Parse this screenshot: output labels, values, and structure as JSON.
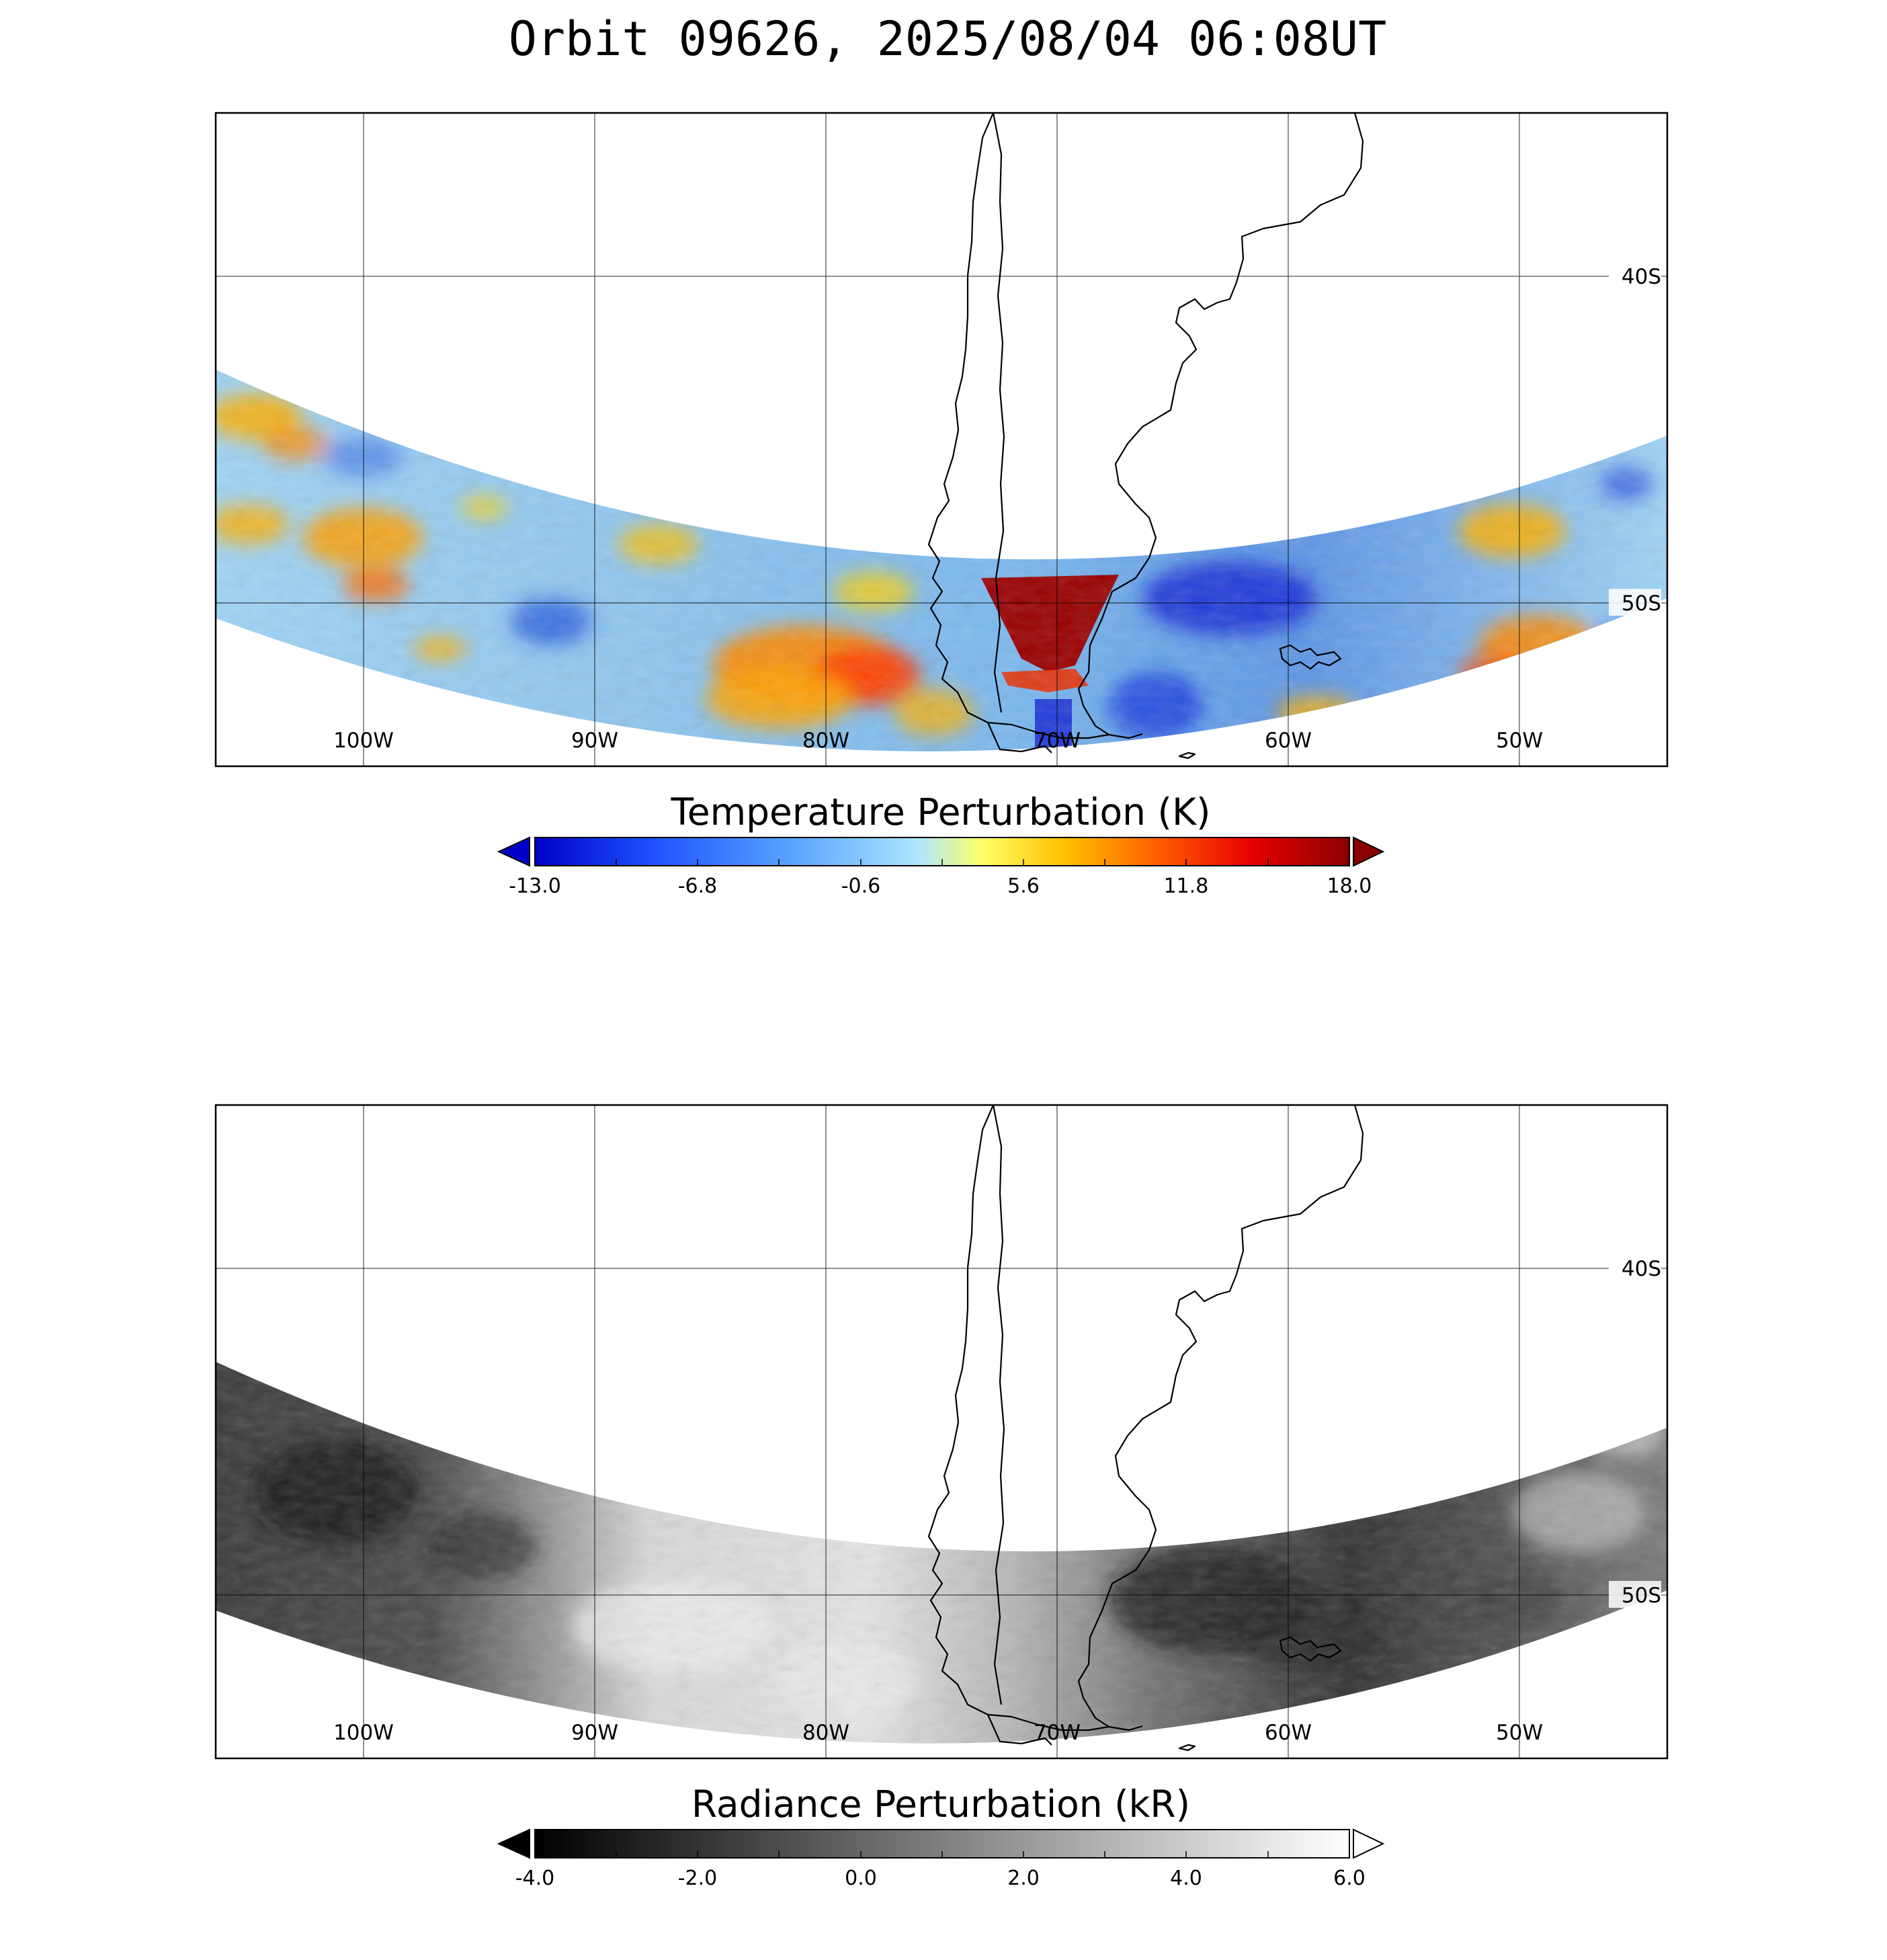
{
  "title": "Orbit 09626, 2025/08/04 06:08UT",
  "panels": [
    {
      "name": "temperature",
      "lon_labels": [
        "100W",
        "90W",
        "80W",
        "70W",
        "60W",
        "50W"
      ],
      "lat_labels": [
        "40S",
        "50S"
      ],
      "colorbar": {
        "label": "Temperature Perturbation (K)",
        "ticks": [
          "-13.0",
          "-6.8",
          "-0.6",
          "5.6",
          "11.8",
          "18.0"
        ],
        "range": [
          -13.0,
          18.0
        ],
        "under_color": "#0000c8",
        "over_color": "#8b0000",
        "colormap": [
          "#0000c8",
          "#1f55ff",
          "#5aa5ff",
          "#aee6ff",
          "#ffff66",
          "#ffc000",
          "#ff5a00",
          "#e60000",
          "#8b0000"
        ]
      }
    },
    {
      "name": "radiance",
      "lon_labels": [
        "100W",
        "90W",
        "80W",
        "70W",
        "60W",
        "50W"
      ],
      "lat_labels": [
        "40S",
        "50S"
      ],
      "colorbar": {
        "label": "Radiance Perturbation (kR)",
        "ticks": [
          "-4.0",
          "-2.0",
          "0.0",
          "2.0",
          "4.0",
          "6.0"
        ],
        "range": [
          -4.0,
          6.0
        ],
        "under_color": "#000000",
        "over_color": "#ffffff",
        "colormap": [
          "#000000",
          "#ffffff"
        ]
      }
    }
  ]
}
